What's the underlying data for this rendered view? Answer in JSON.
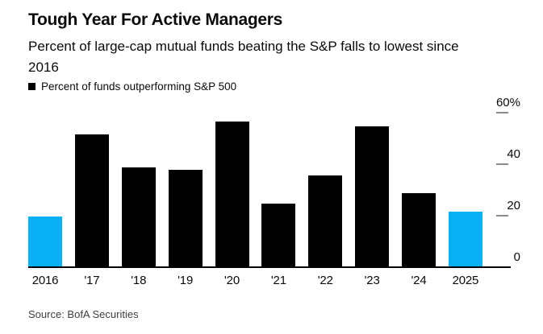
{
  "header": {
    "title": "Tough Year For Active Managers",
    "subtitle": "Percent of large-cap mutual funds beating the S&P falls to lowest since 2016",
    "subtitle_lines": [
      "Percent of large-cap mutual funds beating the S&P falls to lowest since",
      "2016"
    ]
  },
  "legend": {
    "label": "Percent of funds outperforming S&P 500",
    "swatch_color": "#000000"
  },
  "chart_data": {
    "type": "bar",
    "title": "Tough Year For Active Managers",
    "subtitle": "Percent of large-cap mutual funds beating the S&P falls to lowest since 2016",
    "legend_entries": [
      "Percent of funds outperforming S&P 500"
    ],
    "legend_position": "top-left",
    "categories": [
      "2016",
      "'17",
      "'18",
      "'19",
      "'20",
      "'21",
      "'22",
      "'23",
      "'24",
      "2025"
    ],
    "values": [
      20,
      52,
      39,
      38,
      57,
      25,
      36,
      55,
      29,
      22
    ],
    "bar_colors": [
      "#0ab0f5",
      "#000000",
      "#000000",
      "#000000",
      "#000000",
      "#000000",
      "#000000",
      "#000000",
      "#000000",
      "#0ab0f5"
    ],
    "default_bar_color": "#000000",
    "highlight_color": "#0ab0f5",
    "highlighted_categories": [
      "2016",
      "2025"
    ],
    "xlabel": "",
    "ylabel": "",
    "ylim": [
      0,
      60
    ],
    "yticks": [
      0,
      20,
      40,
      60
    ],
    "ytick_labels": [
      "0",
      "20",
      "40",
      "60%"
    ],
    "y_axis_side": "right",
    "grid": false
  },
  "source": "Source: BofA Securities"
}
